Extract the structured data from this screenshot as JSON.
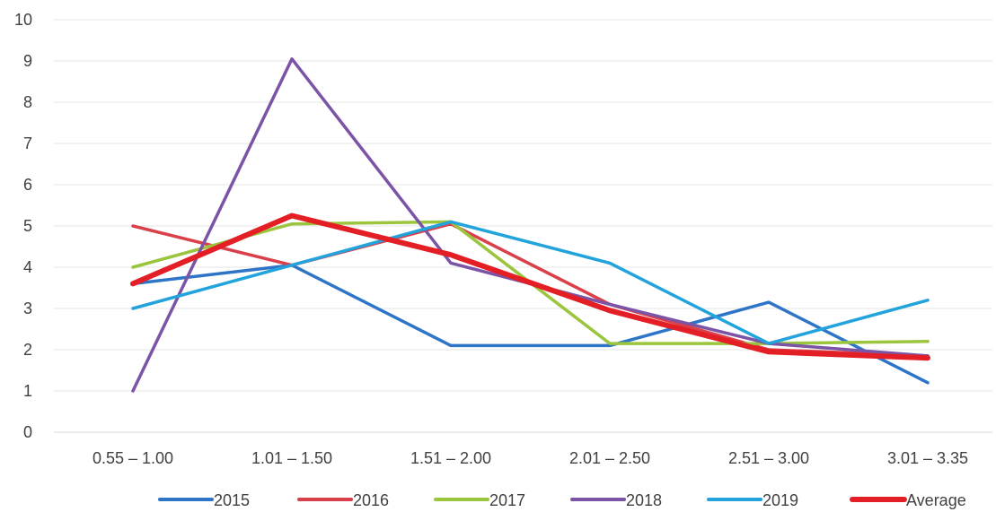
{
  "chart_data": {
    "type": "line",
    "title": "",
    "xlabel": "",
    "ylabel": "",
    "ylim": [
      0,
      10
    ],
    "yticks": [
      "0",
      "1",
      "2",
      "3",
      "4",
      "5",
      "6",
      "7",
      "8",
      "9",
      "10"
    ],
    "grid": "horizontal",
    "legend_position": "bottom",
    "categories": [
      "0.55 – 1.00",
      "1.01 – 1.50",
      "1.51 – 2.00",
      "2.01 – 2.50",
      "2.51 – 3.00",
      "3.01 – 3.35"
    ],
    "series": [
      {
        "name": "2015",
        "color": "#2e75c8",
        "values": [
          3.6,
          4.05,
          2.1,
          2.1,
          3.15,
          1.2
        ]
      },
      {
        "name": "2016",
        "color": "#d9404a",
        "values": [
          5.0,
          4.05,
          5.05,
          3.1,
          2.0,
          1.85
        ]
      },
      {
        "name": "2017",
        "color": "#9bc53d",
        "values": [
          4.0,
          5.05,
          5.1,
          2.15,
          2.15,
          2.2
        ]
      },
      {
        "name": "2018",
        "color": "#7b54a6",
        "values": [
          1.0,
          9.05,
          4.1,
          3.1,
          2.15,
          1.85
        ]
      },
      {
        "name": "2019",
        "color": "#22a3dc",
        "values": [
          3.0,
          4.05,
          5.1,
          4.1,
          2.15,
          3.2
        ]
      },
      {
        "name": "Average",
        "color": "#e31e24",
        "values": [
          3.6,
          5.25,
          4.3,
          2.95,
          1.95,
          1.8
        ],
        "bold": true
      }
    ]
  }
}
